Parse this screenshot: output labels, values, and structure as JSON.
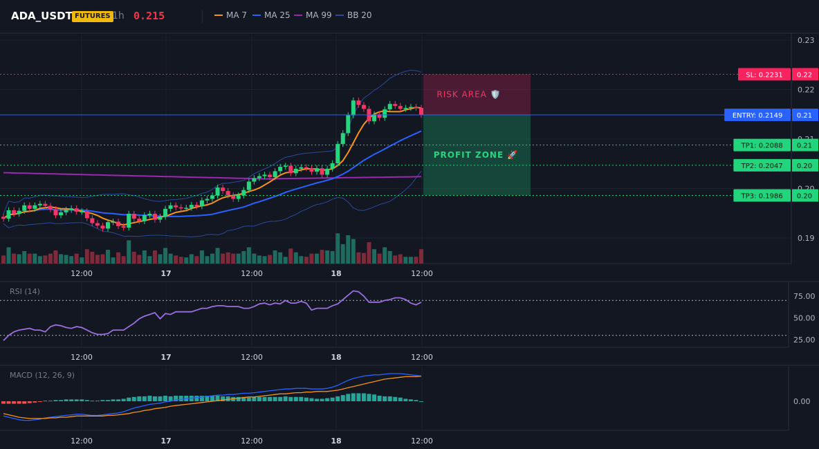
{
  "header": {
    "symbol": "ADA_USDT",
    "badge": "FUTURES",
    "timeframe": "1h",
    "price": "0.215",
    "legend": [
      {
        "label": "MA 7",
        "color": "#f7931a"
      },
      {
        "label": "MA 25",
        "color": "#2962ff"
      },
      {
        "label": "MA 99",
        "color": "#9c27b0"
      },
      {
        "label": "BB 20",
        "color": "#2a4a9a"
      }
    ]
  },
  "colors": {
    "up": "#26d67f",
    "down": "#f23665",
    "vol_up": "#1e6b5f",
    "vol_down": "#7f2a3a",
    "entry": "#2962ff",
    "sl": "#f7225e",
    "tp": "#22d47c",
    "rsi": "#9b6ee0",
    "macd": "#2962ff",
    "signal": "#f7931a"
  },
  "chart_data": [
    {
      "type": "candlestick",
      "name": "price",
      "yticks": [
        "0.23",
        "0.22",
        "0.21",
        "0.20",
        "0.19"
      ],
      "xticks": [
        "12:00",
        "17",
        "12:00",
        "18",
        "12:00"
      ],
      "ylim": [
        0.1855,
        0.2333
      ],
      "close": [
        0.1939,
        0.1956,
        0.1949,
        0.1955,
        0.1966,
        0.1959,
        0.1966,
        0.1969,
        0.1965,
        0.1958,
        0.1946,
        0.1952,
        0.1957,
        0.196,
        0.1953,
        0.1954,
        0.194,
        0.193,
        0.1925,
        0.1919,
        0.1932,
        0.1933,
        0.1924,
        0.1921,
        0.1949,
        0.1939,
        0.1934,
        0.1946,
        0.1949,
        0.1937,
        0.1943,
        0.1959,
        0.1966,
        0.1962,
        0.196,
        0.1961,
        0.1967,
        0.1964,
        0.1976,
        0.1979,
        0.1986,
        0.2002,
        0.1995,
        0.1986,
        0.1979,
        0.1986,
        0.1997,
        0.2014,
        0.2021,
        0.2025,
        0.2028,
        0.2023,
        0.2035,
        0.2044,
        0.2046,
        0.2031,
        0.204,
        0.2043,
        0.2041,
        0.2034,
        0.2041,
        0.2028,
        0.204,
        0.2051,
        0.209,
        0.2112,
        0.2148,
        0.2178,
        0.2169,
        0.2161,
        0.2136,
        0.215,
        0.2143,
        0.216,
        0.2171,
        0.2167,
        0.2161,
        0.2163,
        0.2165,
        0.2163,
        0.2149
      ],
      "x_labels_printed": false
    },
    {
      "type": "line",
      "name": "RSI (14)",
      "yticks": [
        "75.00",
        "50.00",
        "25.00"
      ],
      "ylim": [
        13,
        85
      ],
      "levels": [
        70,
        30
      ],
      "values": [
        24,
        30,
        34,
        36,
        37,
        38,
        36,
        36,
        34,
        40,
        42,
        41,
        39,
        38,
        40,
        39,
        36,
        33,
        31,
        31,
        32,
        36,
        36,
        36,
        40,
        44,
        49,
        52,
        54,
        56,
        49,
        55,
        54,
        57,
        57,
        57,
        57,
        59,
        61,
        61,
        63,
        64,
        64,
        63,
        63,
        63,
        61,
        61,
        63,
        66,
        67,
        65,
        67,
        66,
        70,
        67,
        67,
        69,
        67,
        59,
        61,
        61,
        61,
        64,
        66,
        71,
        76,
        81,
        80,
        75,
        68,
        68,
        68,
        70,
        71,
        73,
        73,
        71,
        67,
        65,
        68
      ],
      "xticks": [
        "12:00",
        "17",
        "12:00",
        "18",
        "12:00"
      ]
    },
    {
      "type": "line",
      "name": "MACD (12, 26, 9)",
      "yticks": [
        "0.00"
      ],
      "ylim": [
        -0.0045,
        0.0046
      ],
      "macd": [
        -0.0024,
        -0.0026,
        -0.0028,
        -0.003,
        -0.0031,
        -0.0031,
        -0.003,
        -0.0029,
        -0.0027,
        -0.0026,
        -0.0025,
        -0.0024,
        -0.0023,
        -0.0022,
        -0.0021,
        -0.0021,
        -0.0022,
        -0.0023,
        -0.0023,
        -0.0022,
        -0.0021,
        -0.002,
        -0.0019,
        -0.0017,
        -0.0014,
        -0.0011,
        -0.0009,
        -0.0007,
        -0.0005,
        -0.0004,
        -0.0003,
        -0.0001,
        0.0,
        0.0002,
        0.0003,
        0.0004,
        0.0005,
        0.0006,
        0.0007,
        0.0008,
        0.0009,
        0.001,
        0.001,
        0.0011,
        0.0011,
        0.0012,
        0.0013,
        0.0013,
        0.0014,
        0.0015,
        0.0016,
        0.0017,
        0.0018,
        0.0019,
        0.002,
        0.002,
        0.0021,
        0.0021,
        0.0021,
        0.002,
        0.002,
        0.002,
        0.0021,
        0.0023,
        0.0026,
        0.003,
        0.0034,
        0.0037,
        0.0039,
        0.0041,
        0.0042,
        0.0043,
        0.0043,
        0.0044,
        0.0045,
        0.0045,
        0.0045,
        0.0044,
        0.0043,
        0.0042,
        0.0041
      ],
      "signal": [
        -0.002,
        -0.0022,
        -0.0024,
        -0.0026,
        -0.0027,
        -0.0028,
        -0.0028,
        -0.0028,
        -0.0028,
        -0.0027,
        -0.0027,
        -0.0026,
        -0.0026,
        -0.0025,
        -0.0024,
        -0.0024,
        -0.0024,
        -0.0024,
        -0.0024,
        -0.0024,
        -0.0023,
        -0.0023,
        -0.0022,
        -0.0021,
        -0.002,
        -0.0018,
        -0.0017,
        -0.0015,
        -0.0014,
        -0.0012,
        -0.0011,
        -0.001,
        -0.0008,
        -0.0007,
        -0.0006,
        -0.0005,
        -0.0004,
        -0.0003,
        -0.0002,
        -0.0001,
        0.0,
        0.0001,
        0.0002,
        0.0003,
        0.0004,
        0.0005,
        0.0006,
        0.0007,
        0.0007,
        0.0008,
        0.0009,
        0.001,
        0.0011,
        0.0012,
        0.0012,
        0.0013,
        0.0014,
        0.0014,
        0.0015,
        0.0015,
        0.0016,
        0.0016,
        0.0016,
        0.0017,
        0.0018,
        0.002,
        0.0022,
        0.0024,
        0.0026,
        0.0028,
        0.003,
        0.0032,
        0.0034,
        0.0036,
        0.0037,
        0.0038,
        0.0039,
        0.004,
        0.004,
        0.004,
        0.0041
      ],
      "xticks": [
        "12:00",
        "17",
        "12:00",
        "18",
        "12:00"
      ]
    }
  ],
  "levels": {
    "sl": {
      "label": "SL: 0.2231",
      "value": 0.2231,
      "axis": "0.22"
    },
    "entry": {
      "label": "ENTRY: 0.2149",
      "value": 0.2149,
      "axis": "0.21"
    },
    "tp1": {
      "label": "TP1: 0.2088",
      "value": 0.2088,
      "axis": "0.21"
    },
    "tp2": {
      "label": "TP2: 0.2047",
      "value": 0.2047,
      "axis": "0.20"
    },
    "tp3": {
      "label": "TP3: 0.1986",
      "value": 0.1986,
      "axis": "0.20"
    }
  },
  "zones": {
    "risk": "RISK AREA 🛡️",
    "profit": "PROFIT ZONE 🚀"
  },
  "panes": {
    "rsi_label": "RSI (14)",
    "macd_label": "MACD (12, 26, 9)"
  }
}
